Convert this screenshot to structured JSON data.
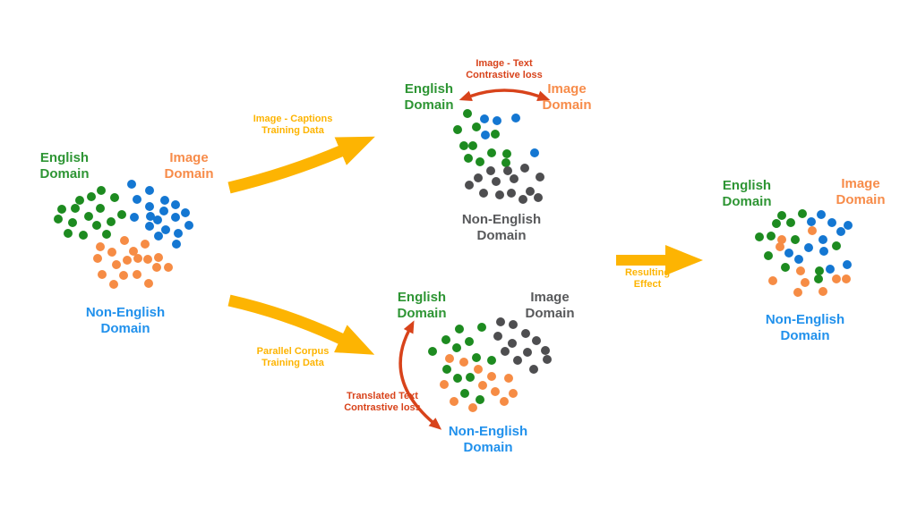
{
  "colors": {
    "green": "#2e9534",
    "orange": "#f78c4a",
    "blue": "#2191ec",
    "gray": "#58595b",
    "gold": "#fdb402",
    "red": "#d8431b",
    "dot_green": "#1d8b20",
    "dot_blue": "#1477d2",
    "dot_orange": "#f68c45",
    "dot_gray": "#4e4e50"
  },
  "panel_initial": {
    "english_label": "English Domain",
    "image_label": "Image Domain",
    "non_english_label": "Non-English Domain"
  },
  "panel_image_text": {
    "loss_label": "Image - Text Contrastive loss",
    "english_label": "English Domain",
    "image_label": "Image Domain",
    "non_english_label": "Non-English Domain"
  },
  "panel_parallel": {
    "english_label": "English Domain",
    "image_label": "Image Domain",
    "loss_label": "Translated Text Contrastive loss",
    "non_english_label": "Non-English Domain"
  },
  "panel_result": {
    "english_label": "English Domain",
    "image_label": "Image Domain",
    "non_english_label": "Non-English Domain"
  },
  "arrows": {
    "image_captions_label": "Image - Captions Training Data",
    "parallel_corpus_label": "Parallel Corpus Training Data",
    "resulting_effect_label": "Resulting Effect"
  },
  "clusters": {
    "initial_green": {
      "color": "dot_green",
      "dots": [
        [
          113,
          213
        ],
        [
          102,
          220
        ],
        [
          128,
          221
        ],
        [
          89,
          224
        ],
        [
          69,
          234
        ],
        [
          84,
          233
        ],
        [
          112,
          233
        ],
        [
          136,
          240
        ],
        [
          99,
          242
        ],
        [
          65,
          245
        ],
        [
          81,
          249
        ],
        [
          108,
          252
        ],
        [
          124,
          248
        ],
        [
          76,
          261
        ],
        [
          93,
          263
        ],
        [
          119,
          262
        ]
      ]
    },
    "initial_blue": {
      "color": "dot_blue",
      "dots": [
        [
          147,
          206
        ],
        [
          167,
          213
        ],
        [
          153,
          223
        ],
        [
          184,
          224
        ],
        [
          196,
          229
        ],
        [
          167,
          231
        ],
        [
          183,
          236
        ],
        [
          150,
          243
        ],
        [
          168,
          242
        ],
        [
          176,
          246
        ],
        [
          196,
          243
        ],
        [
          207,
          238
        ],
        [
          167,
          253
        ],
        [
          185,
          257
        ],
        [
          211,
          252
        ],
        [
          199,
          261
        ],
        [
          177,
          264
        ],
        [
          197,
          273
        ]
      ]
    },
    "initial_orange": {
      "color": "dot_orange",
      "dots": [
        [
          139,
          269
        ],
        [
          162,
          273
        ],
        [
          112,
          276
        ],
        [
          125,
          282
        ],
        [
          149,
          281
        ],
        [
          109,
          289
        ],
        [
          130,
          296
        ],
        [
          142,
          291
        ],
        [
          154,
          289
        ],
        [
          165,
          290
        ],
        [
          177,
          288
        ],
        [
          175,
          299
        ],
        [
          188,
          299
        ],
        [
          114,
          307
        ],
        [
          138,
          308
        ],
        [
          153,
          307
        ],
        [
          166,
          317
        ],
        [
          127,
          318
        ]
      ]
    },
    "image_text_green": {
      "color": "dot_green",
      "dots": [
        [
          522,
          127
        ],
        [
          511,
          145
        ],
        [
          532,
          142
        ],
        [
          553,
          150
        ],
        [
          518,
          163
        ],
        [
          528,
          163
        ],
        [
          549,
          171
        ],
        [
          566,
          172
        ],
        [
          523,
          177
        ],
        [
          536,
          181
        ],
        [
          565,
          182
        ]
      ]
    },
    "image_text_blue": {
      "color": "dot_blue",
      "dots": [
        [
          541,
          133
        ],
        [
          555,
          135
        ],
        [
          576,
          132
        ],
        [
          542,
          151
        ],
        [
          597,
          171
        ]
      ]
    },
    "image_text_gray": {
      "color": "dot_gray",
      "dots": [
        [
          548,
          191
        ],
        [
          567,
          191
        ],
        [
          586,
          188
        ],
        [
          534,
          199
        ],
        [
          554,
          203
        ],
        [
          574,
          200
        ],
        [
          603,
          198
        ],
        [
          524,
          207
        ],
        [
          540,
          216
        ],
        [
          558,
          218
        ],
        [
          571,
          216
        ],
        [
          592,
          214
        ],
        [
          584,
          223
        ],
        [
          601,
          221
        ]
      ]
    },
    "parallel_green": {
      "color": "dot_green",
      "dots": [
        [
          513,
          368
        ],
        [
          538,
          366
        ],
        [
          498,
          380
        ],
        [
          524,
          382
        ],
        [
          510,
          389
        ],
        [
          483,
          393
        ],
        [
          532,
          400
        ],
        [
          549,
          403
        ],
        [
          499,
          413
        ],
        [
          511,
          423
        ],
        [
          525,
          422
        ],
        [
          519,
          440
        ],
        [
          536,
          447
        ]
      ]
    },
    "parallel_orange": {
      "color": "dot_orange",
      "dots": [
        [
          502,
          401
        ],
        [
          518,
          405
        ],
        [
          534,
          413
        ],
        [
          549,
          421
        ],
        [
          568,
          423
        ],
        [
          496,
          430
        ],
        [
          539,
          431
        ],
        [
          553,
          438
        ],
        [
          573,
          440
        ],
        [
          507,
          449
        ],
        [
          563,
          449
        ],
        [
          528,
          456
        ]
      ]
    },
    "parallel_gray": {
      "color": "dot_gray",
      "dots": [
        [
          559,
          360
        ],
        [
          573,
          363
        ],
        [
          556,
          376
        ],
        [
          587,
          373
        ],
        [
          572,
          384
        ],
        [
          599,
          381
        ],
        [
          564,
          393
        ],
        [
          589,
          394
        ],
        [
          609,
          392
        ],
        [
          578,
          403
        ],
        [
          596,
          413
        ],
        [
          611,
          402
        ]
      ]
    },
    "result_green": {
      "color": "dot_green",
      "dots": [
        [
          873,
          241
        ],
        [
          896,
          239
        ],
        [
          867,
          250
        ],
        [
          883,
          249
        ],
        [
          848,
          265
        ],
        [
          861,
          264
        ],
        [
          888,
          268
        ],
        [
          934,
          275
        ],
        [
          858,
          286
        ],
        [
          877,
          299
        ],
        [
          915,
          303
        ],
        [
          914,
          312
        ]
      ]
    },
    "result_blue": {
      "color": "dot_blue",
      "dots": [
        [
          917,
          240
        ],
        [
          906,
          248
        ],
        [
          929,
          249
        ],
        [
          947,
          252
        ],
        [
          919,
          268
        ],
        [
          939,
          259
        ],
        [
          881,
          283
        ],
        [
          903,
          277
        ],
        [
          920,
          281
        ],
        [
          946,
          296
        ],
        [
          892,
          290
        ],
        [
          927,
          301
        ]
      ]
    },
    "result_orange": {
      "color": "dot_orange",
      "dots": [
        [
          873,
          268
        ],
        [
          907,
          258
        ],
        [
          871,
          276
        ],
        [
          894,
          303
        ],
        [
          863,
          314
        ],
        [
          899,
          316
        ],
        [
          934,
          312
        ],
        [
          945,
          312
        ],
        [
          891,
          327
        ],
        [
          919,
          326
        ]
      ]
    }
  }
}
